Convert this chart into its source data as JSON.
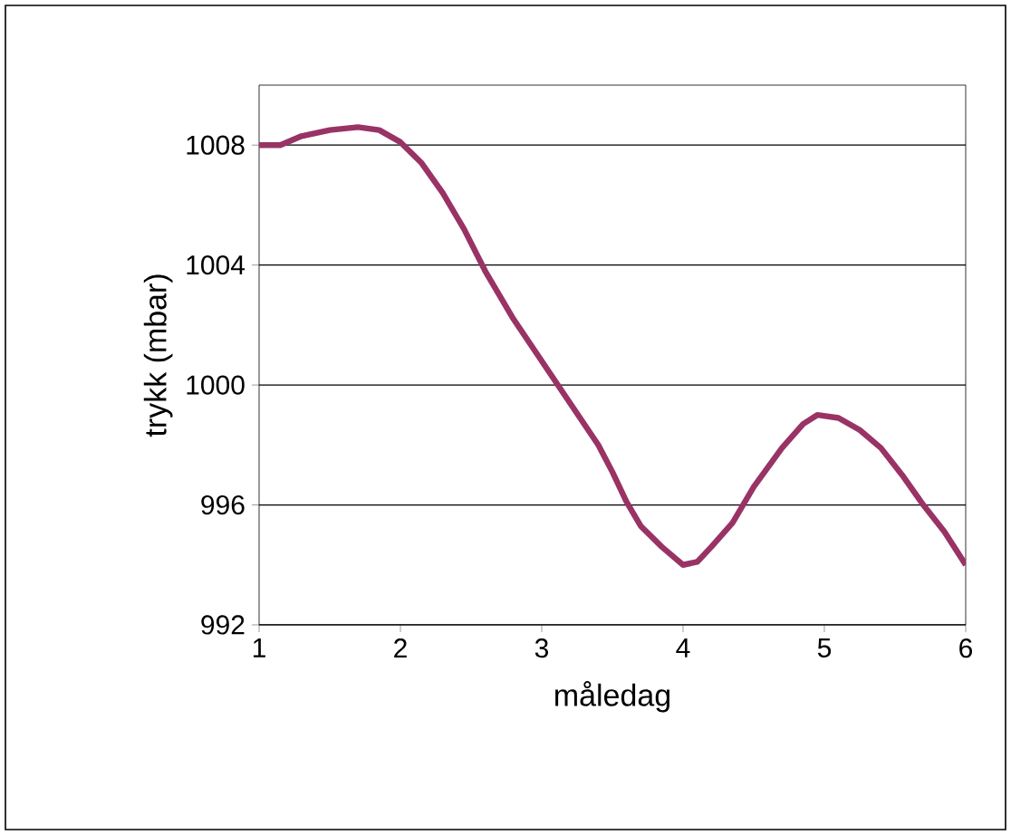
{
  "chart_data": {
    "type": "line",
    "xlabel": "måledag",
    "ylabel": "trykk (mbar)",
    "x": [
      1.0,
      1.15,
      1.3,
      1.5,
      1.7,
      1.85,
      2.0,
      2.15,
      2.3,
      2.45,
      2.6,
      2.8,
      3.0,
      3.2,
      3.4,
      3.5,
      3.6,
      3.7,
      3.85,
      4.0,
      4.1,
      4.2,
      4.35,
      4.5,
      4.7,
      4.85,
      4.95,
      5.1,
      5.25,
      5.4,
      5.55,
      5.7,
      5.85,
      6.0
    ],
    "series": [
      {
        "color": "#993366",
        "values": [
          1008,
          1008,
          1008.3,
          1008.5,
          1008.6,
          1008.5,
          1008.1,
          1007.4,
          1006.4,
          1005.2,
          1003.8,
          1002.2,
          1000.8,
          999.4,
          998,
          997.1,
          996.1,
          995.3,
          994.6,
          994,
          994.1,
          994.6,
          995.4,
          996.6,
          997.9,
          998.7,
          999,
          998.9,
          998.5,
          997.9,
          997,
          996,
          995.1,
          994.0
        ]
      }
    ],
    "xlim": [
      1,
      6
    ],
    "ylim": [
      992,
      1010
    ],
    "xticks": [
      1,
      2,
      3,
      4,
      5,
      6
    ],
    "yticks": [
      992,
      996,
      1000,
      1004,
      1008
    ],
    "grid": "y",
    "marker": "none",
    "line_style": "solid"
  }
}
